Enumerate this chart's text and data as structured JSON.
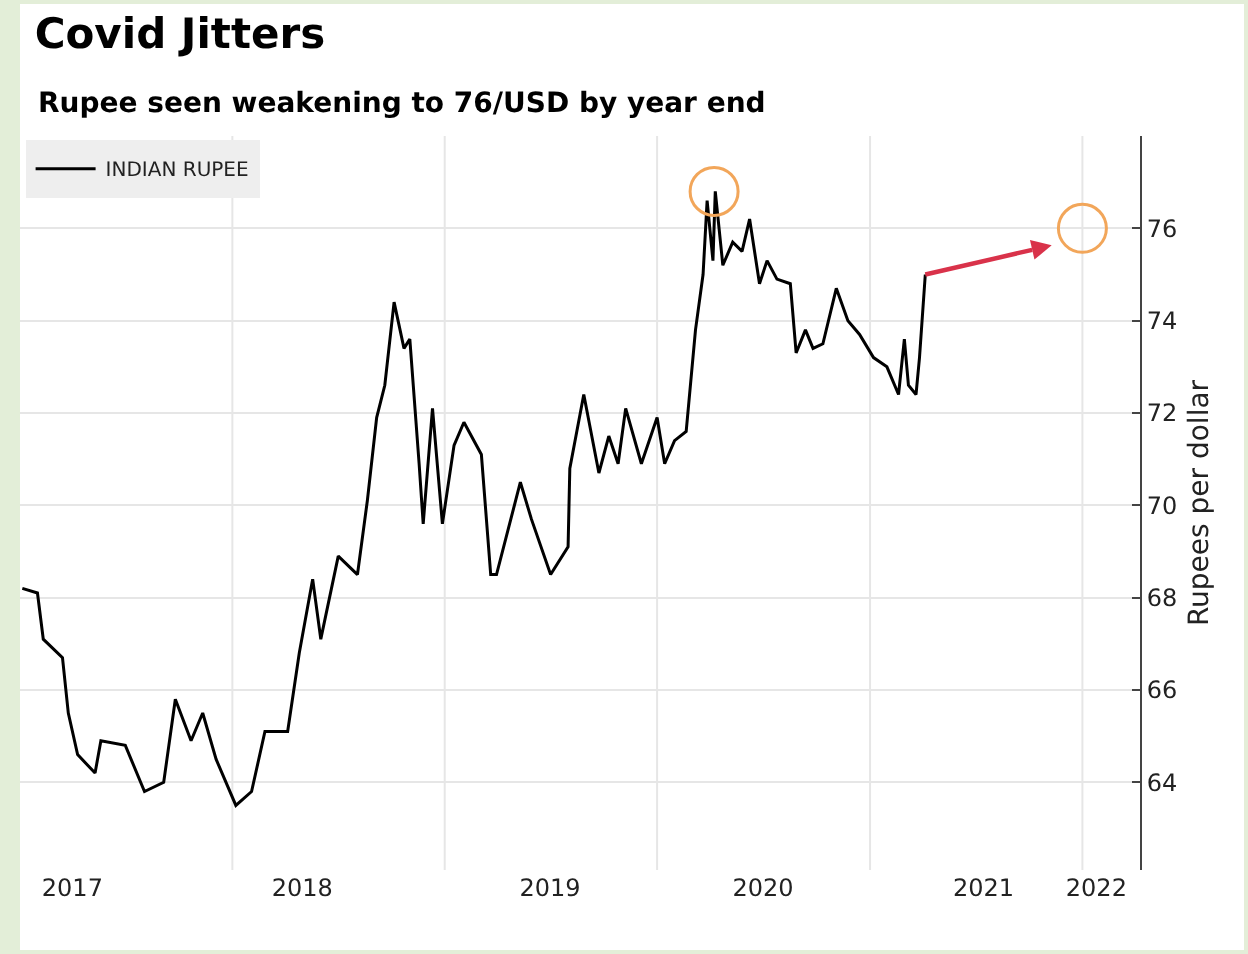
{
  "chart_data": {
    "type": "line",
    "title": "Covid Jitters",
    "subtitle": "Rupee seen weakening to 76/USD by year end",
    "ylabel": "Rupees per dollar",
    "x": [
      "2017-01-05",
      "2017-01-31",
      "2017-02-10",
      "2017-03-15",
      "2017-03-25",
      "2017-04-10",
      "2017-05-10",
      "2017-05-20",
      "2017-07-01",
      "2017-08-03",
      "2017-09-05",
      "2017-09-25",
      "2017-10-22",
      "2017-11-11",
      "2017-12-04",
      "2018-01-07",
      "2018-02-03",
      "2018-02-26",
      "2018-04-06",
      "2018-04-26",
      "2018-05-19",
      "2018-06-02",
      "2018-07-02",
      "2018-08-04",
      "2018-08-21",
      "2018-09-06",
      "2018-09-20",
      "2018-10-06",
      "2018-10-23",
      "2018-11-02",
      "2018-11-18",
      "2018-11-25",
      "2018-12-11",
      "2018-12-28",
      "2019-01-17",
      "2019-02-03",
      "2019-03-05",
      "2019-03-21",
      "2019-03-31",
      "2019-05-11",
      "2019-05-30",
      "2019-07-02",
      "2019-08-01",
      "2019-08-04",
      "2019-08-28",
      "2019-09-23",
      "2019-10-10",
      "2019-10-26",
      "2019-11-08",
      "2019-12-05",
      "2020-01-01",
      "2020-01-14",
      "2020-01-31",
      "2020-02-20",
      "2020-03-07",
      "2020-03-20",
      "2020-03-27",
      "2020-04-06",
      "2020-04-10",
      "2020-04-23",
      "2020-05-10",
      "2020-05-26",
      "2020-06-08",
      "2020-06-25",
      "2020-07-08",
      "2020-07-25",
      "2020-08-17",
      "2020-08-27",
      "2020-09-12",
      "2020-09-25",
      "2020-10-12",
      "2020-11-04",
      "2020-11-24",
      "2020-12-14",
      "2021-01-07",
      "2021-01-30",
      "2021-02-19",
      "2021-03-01",
      "2021-03-08",
      "2021-03-21",
      "2021-03-27",
      "2021-04-06"
    ],
    "series": [
      {
        "name": "INDIAN RUPEE",
        "color": "#000000",
        "values": [
          68.2,
          68.1,
          67.1,
          66.7,
          65.5,
          64.6,
          64.2,
          64.9,
          64.8,
          63.8,
          64.0,
          65.8,
          64.9,
          65.5,
          64.5,
          63.5,
          63.8,
          65.1,
          65.1,
          66.8,
          68.4,
          67.1,
          68.9,
          68.5,
          70.1,
          71.9,
          72.6,
          74.4,
          73.4,
          73.6,
          70.9,
          69.6,
          72.1,
          69.6,
          71.3,
          71.8,
          71.1,
          68.5,
          68.5,
          70.5,
          69.7,
          68.5,
          69.1,
          70.8,
          72.4,
          70.7,
          71.5,
          70.9,
          72.1,
          70.9,
          71.9,
          70.9,
          71.4,
          71.6,
          73.8,
          75.0,
          76.6,
          75.3,
          76.8,
          75.2,
          75.7,
          75.5,
          76.2,
          74.8,
          75.3,
          74.9,
          74.8,
          73.3,
          73.8,
          73.4,
          73.5,
          74.7,
          74.0,
          73.7,
          73.2,
          73.0,
          72.4,
          73.6,
          72.6,
          72.4,
          73.2,
          75.0
        ]
      },
      {
        "type": "scatter",
        "color": "#f2a65a",
        "x": [
          "2020-04-08",
          "2022-01-01"
        ],
        "values": [
          76.8,
          76.0
        ],
        "marker": "circle"
      }
    ],
    "xlim": [
      "2017-01-01",
      "2022-04-10"
    ],
    "xticks": [
      {
        "value": "2017-04-01",
        "label": "2017"
      },
      {
        "value": "2018-01-01",
        "label": null
      },
      {
        "value": "2018-05-01",
        "label": "2018"
      },
      {
        "value": "2019-01-01",
        "label": null
      },
      {
        "value": "2019-07-01",
        "label": "2019"
      },
      {
        "value": "2020-01-01",
        "label": null
      },
      {
        "value": "2020-07-01",
        "label": "2020"
      },
      {
        "value": "2021-01-01",
        "label": null
      },
      {
        "value": "2021-07-15",
        "label": "2021"
      },
      {
        "value": "2022-01-01",
        "label": null
      },
      {
        "value": "2022-01-25",
        "label": "2022"
      }
    ],
    "ylim": [
      62.1,
      78
    ],
    "yticks": [
      64,
      66,
      68,
      70,
      72,
      74,
      76
    ],
    "grid": true,
    "legend": "top left",
    "line_style": "solid"
  }
}
